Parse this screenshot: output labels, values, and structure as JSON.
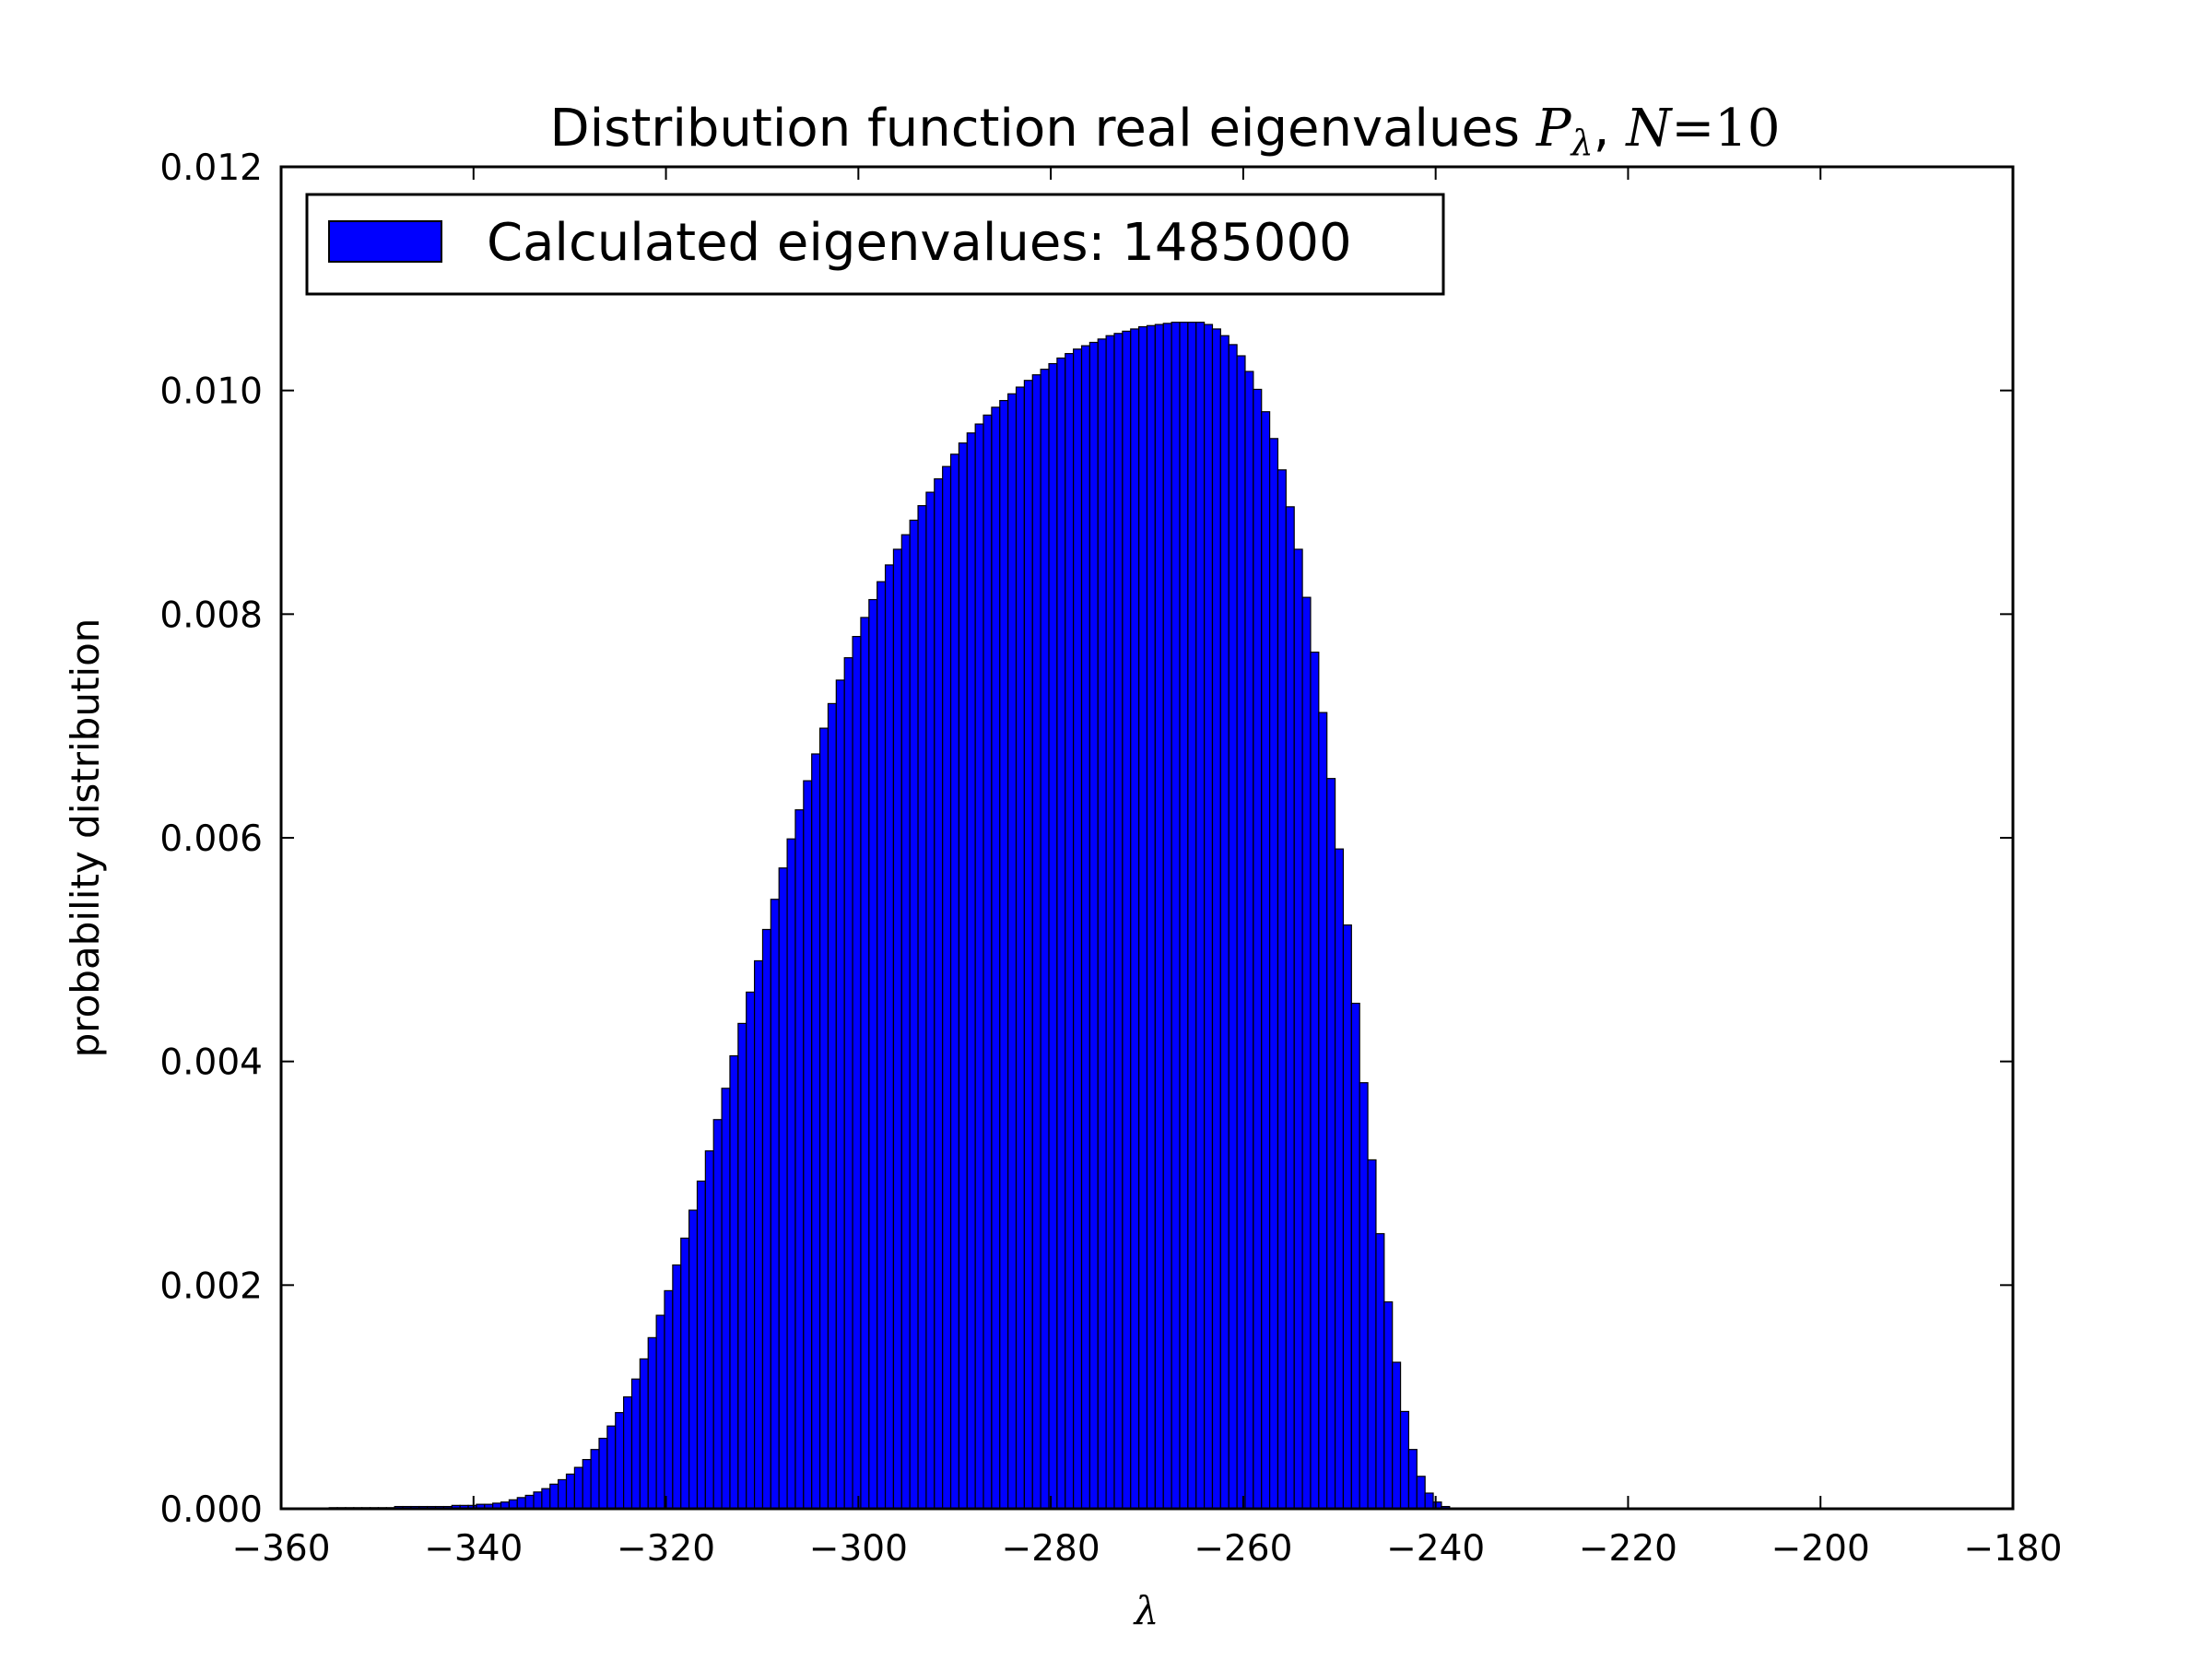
{
  "chart_data": {
    "type": "bar",
    "title": {
      "prefix": "Distribution function real eigenvalues",
      "math_symbol": "P",
      "math_subscript": "λ",
      "math_separator": ",",
      "math_n_var": "N",
      "math_eq": "=",
      "math_n_val": "10"
    },
    "xlabel": "λ",
    "ylabel": "probability distribution",
    "xlim": [
      -360,
      -180
    ],
    "ylim": [
      0,
      0.012
    ],
    "xticks": [
      -360,
      -340,
      -320,
      -300,
      -280,
      -260,
      -240,
      -220,
      -200,
      -180
    ],
    "xtick_labels": [
      "−360",
      "−340",
      "−320",
      "−300",
      "−280",
      "−260",
      "−240",
      "−220",
      "−200",
      "−180"
    ],
    "yticks": [
      0,
      0.002,
      0.004,
      0.006,
      0.008,
      0.01,
      0.012
    ],
    "ytick_labels": [
      "0.000",
      "0.002",
      "0.004",
      "0.006",
      "0.008",
      "0.010",
      "0.012"
    ],
    "legend": {
      "position": "top-left",
      "label": "Calculated eigenvalues: 1485000"
    },
    "bar_color": "#0000ff",
    "edge_color": "#000000",
    "grid": false,
    "series": [
      {
        "name": "Calculated eigenvalues: 1485000",
        "bin_start": -355,
        "bin_width": 0.85,
        "values": [
          1e-05,
          1e-05,
          1e-05,
          1e-05,
          1e-05,
          1e-05,
          1e-05,
          1e-05,
          2e-05,
          2e-05,
          2e-05,
          2e-05,
          2e-05,
          2e-05,
          2e-05,
          3e-05,
          3e-05,
          3e-05,
          4e-05,
          4e-05,
          5e-05,
          6e-05,
          8e-05,
          0.0001,
          0.00012,
          0.00015,
          0.00018,
          0.00022,
          0.00026,
          0.00031,
          0.00037,
          0.00044,
          0.00053,
          0.00063,
          0.00074,
          0.00086,
          0.001,
          0.00116,
          0.00134,
          0.00153,
          0.00173,
          0.00195,
          0.00218,
          0.00242,
          0.00267,
          0.00293,
          0.0032,
          0.00348,
          0.00376,
          0.00405,
          0.00434,
          0.00462,
          0.0049,
          0.00518,
          0.00545,
          0.00573,
          0.00599,
          0.00625,
          0.00651,
          0.00675,
          0.00698,
          0.0072,
          0.00741,
          0.00761,
          0.0078,
          0.00797,
          0.00813,
          0.00829,
          0.00844,
          0.00858,
          0.00871,
          0.00884,
          0.00897,
          0.00909,
          0.00921,
          0.00932,
          0.00943,
          0.00953,
          0.00962,
          0.0097,
          0.00978,
          0.00985,
          0.00991,
          0.00997,
          0.01003,
          0.01009,
          0.01014,
          0.01019,
          0.01024,
          0.01029,
          0.01033,
          0.01037,
          0.0104,
          0.01043,
          0.01046,
          0.01049,
          0.01051,
          0.01053,
          0.01055,
          0.01057,
          0.01058,
          0.01059,
          0.0106,
          0.01061,
          0.01061,
          0.01061,
          0.01061,
          0.01059,
          0.01055,
          0.01049,
          0.01041,
          0.01031,
          0.01017,
          0.01001,
          0.00981,
          0.00957,
          0.00929,
          0.00896,
          0.00858,
          0.00815,
          0.00766,
          0.00712,
          0.00653,
          0.0059,
          0.00522,
          0.00452,
          0.00381,
          0.00312,
          0.00246,
          0.00185,
          0.00131,
          0.00087,
          0.00053,
          0.00029,
          0.00014,
          6e-05,
          2e-05
        ]
      }
    ]
  }
}
